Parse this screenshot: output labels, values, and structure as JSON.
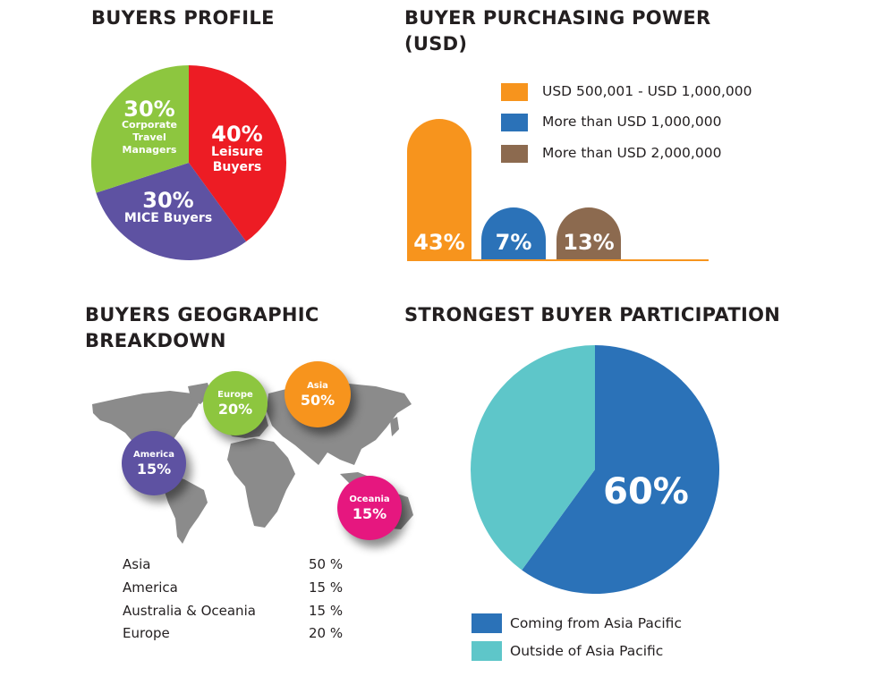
{
  "profile": {
    "title": "BUYERS PROFILE"
  },
  "power": {
    "title_line1": "BUYER PURCHASING POWER",
    "title_line2": "(USD)"
  },
  "geo": {
    "title_line1": "BUYERS GEOGRAPHIC",
    "title_line2": "BREAKDOWN",
    "bubbles": [
      {
        "name": "Europe",
        "value": "20%",
        "color": "#8dc63f"
      },
      {
        "name": "Asia",
        "value": "50%",
        "color": "#f7941d"
      },
      {
        "name": "America",
        "value": "15%",
        "color": "#5e52a2"
      },
      {
        "name": "Oceania",
        "value": "15%",
        "color": "#e6177f"
      }
    ],
    "table": [
      {
        "region": "Asia",
        "value": "50 %"
      },
      {
        "region": "America",
        "value": "15 %"
      },
      {
        "region": "Australia & Oceania",
        "value": "15 %"
      },
      {
        "region": "Europe",
        "value": "20 %"
      }
    ]
  },
  "participation": {
    "title": "STRONGEST BUYER PARTICIPATION"
  },
  "chart_data": [
    {
      "type": "pie",
      "title": "BUYERS PROFILE",
      "slices": [
        {
          "label_pct": "40%",
          "label_lines": [
            "Leisure",
            "Buyers"
          ],
          "value": 40,
          "color": "#ed1c24"
        },
        {
          "label_pct": "30%",
          "label_lines": [
            "MICE Buyers"
          ],
          "value": 30,
          "color": "#5e52a2"
        },
        {
          "label_pct": "30%",
          "label_lines": [
            "Corporate",
            "Travel",
            "Managers"
          ],
          "value": 30,
          "color": "#8dc63f"
        }
      ]
    },
    {
      "type": "bar",
      "title": "BUYER PURCHASING POWER (USD)",
      "legend": "top-right",
      "series": [
        {
          "name": "USD 500,001 - USD 1,000,000",
          "value": 43,
          "label": "43%",
          "color": "#f7941d"
        },
        {
          "name": "More than USD 1,000,000",
          "value": 7,
          "label": "7%",
          "color": "#2b72b8"
        },
        {
          "name": "More than USD 2,000,000",
          "value": 13,
          "label": "13%",
          "color": "#8c6a4f"
        }
      ]
    },
    {
      "type": "pie",
      "title": "STRONGEST BUYER PARTICIPATION",
      "legend": "bottom",
      "slices": [
        {
          "name": "Coming from Asia Pacific",
          "value": 60,
          "label": "60%",
          "color": "#2b72b8"
        },
        {
          "name": "Outside of Asia Pacific",
          "value": 40,
          "color": "#5ec6c9"
        }
      ]
    }
  ]
}
